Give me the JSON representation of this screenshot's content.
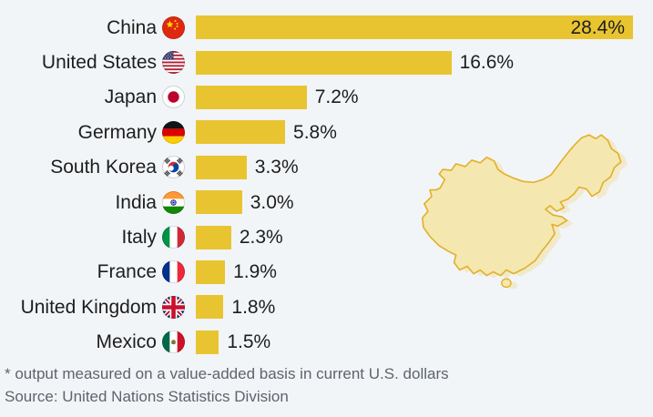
{
  "chart_data": {
    "type": "bar",
    "orientation": "horizontal",
    "unit": "%",
    "categories": [
      "China",
      "United States",
      "Japan",
      "Germany",
      "South Korea",
      "India",
      "Italy",
      "France",
      "United Kingdom",
      "Mexico"
    ],
    "values": [
      28.4,
      16.6,
      7.2,
      5.8,
      3.3,
      3.0,
      2.3,
      1.9,
      1.8,
      1.5
    ],
    "value_labels": [
      "28.4%",
      "16.6%",
      "7.2%",
      "5.8%",
      "3.3%",
      "3.0%",
      "2.3%",
      "1.9%",
      "1.8%",
      "1.5%"
    ],
    "flags": [
      "china-flag-icon",
      "united-states-flag-icon",
      "japan-flag-icon",
      "germany-flag-icon",
      "south-korea-flag-icon",
      "india-flag-icon",
      "italy-flag-icon",
      "france-flag-icon",
      "united-kingdom-flag-icon",
      "mexico-flag-icon"
    ],
    "xlim": [
      0,
      28.4
    ],
    "grid": false,
    "legend": false,
    "bar_color": "#e9c431"
  },
  "footer": {
    "footnote": "* output measured on a value-added basis in current U.S. dollars",
    "source": "Source: United Nations Statistics Division"
  },
  "map": {
    "name": "china-map-silhouette",
    "fill": "#f4e8b0",
    "outline": "#e4b02a"
  },
  "colors": {
    "background": "#f2f5f8",
    "label_text": "#1d1d1d",
    "footer_text": "#5d646c"
  }
}
